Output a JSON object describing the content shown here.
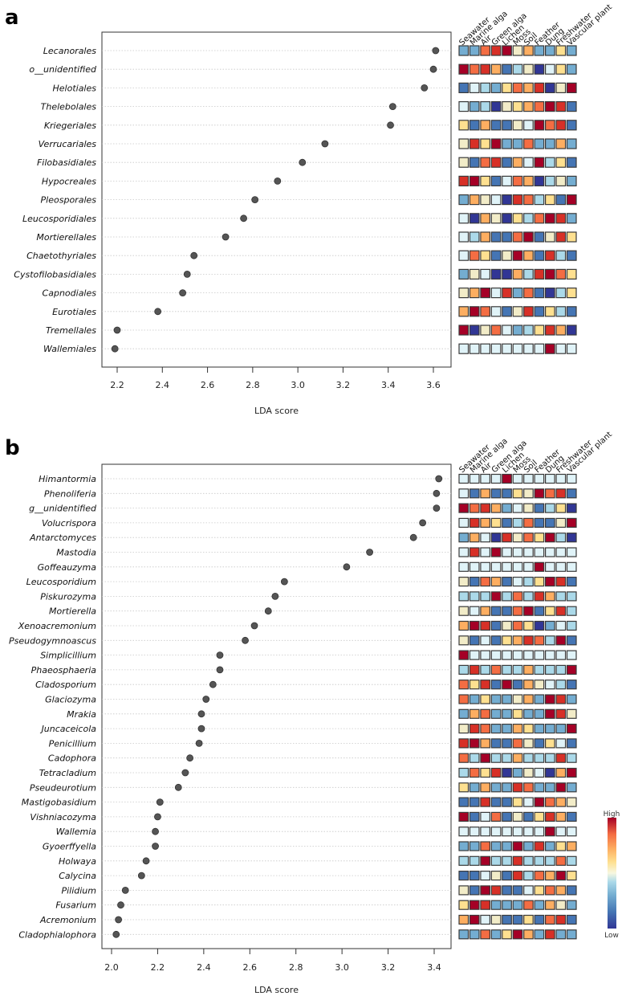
{
  "palette": [
    "#313695",
    "#4575b4",
    "#74add1",
    "#abd9e9",
    "#e0f3f8",
    "#f2ecc8",
    "#fee090",
    "#fdae61",
    "#f46d43",
    "#d73027",
    "#a50026"
  ],
  "legend": {
    "high": "High",
    "low": "Low"
  },
  "chart_data": [
    {
      "panel": "a",
      "type": "scatter",
      "xlabel": "LDA score",
      "xlim": [
        2.12,
        3.68
      ],
      "xticks": [
        "2.2",
        "2.4",
        "2.6",
        "2.8",
        "3.0",
        "3.2",
        "3.4",
        "3.6"
      ],
      "grid": "dotted horizontal",
      "habitats": [
        "Seawater",
        "Marine alga",
        "Air",
        "Green alga",
        "Lichen",
        "Moss",
        "Soil",
        "Feather",
        "Dung",
        "Freshwater",
        "Vascular plant"
      ],
      "taxa": [
        {
          "name": "Lecanorales",
          "lda": 3.61,
          "heat": [
            2,
            2,
            8,
            9,
            10,
            5,
            7,
            2,
            2,
            6,
            2
          ]
        },
        {
          "name": "o__unidentified",
          "lda": 3.6,
          "heat": [
            10,
            8,
            9,
            7,
            1,
            3,
            5,
            0,
            4,
            6,
            2
          ]
        },
        {
          "name": "Helotiales",
          "lda": 3.56,
          "heat": [
            1,
            4,
            3,
            2,
            6,
            8,
            7,
            9,
            0,
            5,
            10
          ]
        },
        {
          "name": "Thelebolales",
          "lda": 3.42,
          "heat": [
            4,
            2,
            3,
            0,
            5,
            6,
            7,
            8,
            10,
            9,
            1
          ]
        },
        {
          "name": "Kriegeriales",
          "lda": 3.41,
          "heat": [
            6,
            1,
            7,
            1,
            1,
            5,
            4,
            10,
            8,
            9,
            1
          ]
        },
        {
          "name": "Verrucariales",
          "lda": 3.12,
          "heat": [
            5,
            9,
            6,
            10,
            2,
            2,
            8,
            2,
            2,
            7,
            2
          ]
        },
        {
          "name": "Filobasidiales",
          "lda": 3.02,
          "heat": [
            5,
            1,
            8,
            9,
            1,
            7,
            4,
            10,
            3,
            6,
            1
          ]
        },
        {
          "name": "Hypocreales",
          "lda": 2.91,
          "heat": [
            9,
            10,
            6,
            1,
            4,
            8,
            7,
            0,
            3,
            5,
            2
          ]
        },
        {
          "name": "Pleosporales",
          "lda": 2.81,
          "heat": [
            2,
            7,
            5,
            4,
            0,
            9,
            8,
            3,
            6,
            1,
            10
          ]
        },
        {
          "name": "Leucosporidiales",
          "lda": 2.76,
          "heat": [
            4,
            0,
            7,
            5,
            0,
            6,
            3,
            8,
            10,
            9,
            2
          ]
        },
        {
          "name": "Mortierellales",
          "lda": 2.68,
          "heat": [
            4,
            3,
            7,
            1,
            1,
            8,
            10,
            1,
            5,
            9,
            6
          ]
        },
        {
          "name": "Chaetothyriales",
          "lda": 2.54,
          "heat": [
            4,
            8,
            6,
            1,
            5,
            10,
            7,
            1,
            9,
            3,
            1
          ]
        },
        {
          "name": "Cystofilobasidiales",
          "lda": 2.51,
          "heat": [
            2,
            5,
            4,
            0,
            0,
            7,
            3,
            9,
            10,
            8,
            6
          ]
        },
        {
          "name": "Capnodiales",
          "lda": 2.49,
          "heat": [
            5,
            7,
            10,
            4,
            9,
            2,
            8,
            1,
            0,
            3,
            6
          ]
        },
        {
          "name": "Eurotiales",
          "lda": 2.38,
          "heat": [
            7,
            10,
            8,
            4,
            1,
            5,
            9,
            1,
            6,
            3,
            1
          ]
        },
        {
          "name": "Tremellales",
          "lda": 2.2,
          "heat": [
            10,
            0,
            5,
            8,
            4,
            2,
            3,
            6,
            9,
            7,
            0
          ]
        },
        {
          "name": "Wallemiales",
          "lda": 2.19,
          "heat": [
            4,
            4,
            4,
            4,
            4,
            4,
            4,
            4,
            10,
            4,
            4
          ]
        }
      ]
    },
    {
      "panel": "b",
      "type": "scatter",
      "xlabel": "LDA score",
      "xlim": [
        1.94,
        3.49
      ],
      "xticks": [
        "2.0",
        "2.2",
        "2.4",
        "2.6",
        "2.8",
        "3.0",
        "3.2",
        "3.4"
      ],
      "grid": "dotted horizontal",
      "habitats": [
        "Seawater",
        "Marine alga",
        "Air",
        "Green alga",
        "Lichen",
        "Moss",
        "Soil",
        "Feather",
        "Dung",
        "Freshwater",
        "Vascular plant"
      ],
      "taxa": [
        {
          "name": "Himantormia",
          "lda": 3.42,
          "heat": [
            4,
            4,
            4,
            4,
            10,
            4,
            4,
            4,
            4,
            4,
            4
          ]
        },
        {
          "name": "Phenoliferia",
          "lda": 3.41,
          "heat": [
            4,
            1,
            7,
            1,
            1,
            6,
            5,
            10,
            8,
            9,
            1
          ]
        },
        {
          "name": "g__unidentified",
          "lda": 3.41,
          "heat": [
            10,
            8,
            9,
            7,
            2,
            4,
            5,
            1,
            3,
            6,
            0
          ]
        },
        {
          "name": "Volucrispora",
          "lda": 3.35,
          "heat": [
            4,
            9,
            7,
            6,
            1,
            3,
            8,
            1,
            1,
            5,
            10
          ]
        },
        {
          "name": "Antarctomyces",
          "lda": 3.31,
          "heat": [
            2,
            7,
            4,
            0,
            9,
            5,
            8,
            6,
            10,
            3,
            0
          ]
        },
        {
          "name": "Mastodia",
          "lda": 3.12,
          "heat": [
            4,
            9,
            4,
            10,
            4,
            4,
            4,
            4,
            4,
            4,
            4
          ]
        },
        {
          "name": "Goffeauzyma",
          "lda": 3.02,
          "heat": [
            4,
            4,
            4,
            4,
            4,
            4,
            4,
            10,
            4,
            4,
            4
          ]
        },
        {
          "name": "Leucosporidium",
          "lda": 2.75,
          "heat": [
            5,
            1,
            8,
            7,
            1,
            4,
            3,
            6,
            10,
            9,
            1
          ]
        },
        {
          "name": "Piskurozyma",
          "lda": 2.71,
          "heat": [
            3,
            3,
            3,
            10,
            3,
            8,
            3,
            9,
            7,
            3,
            3
          ]
        },
        {
          "name": "Mortierella",
          "lda": 2.68,
          "heat": [
            5,
            4,
            7,
            1,
            1,
            8,
            10,
            1,
            6,
            9,
            3
          ]
        },
        {
          "name": "Xenoacremonium",
          "lda": 2.62,
          "heat": [
            7,
            10,
            9,
            1,
            5,
            8,
            6,
            0,
            2,
            4,
            3
          ]
        },
        {
          "name": "Pseudogymnoascus",
          "lda": 2.58,
          "heat": [
            5,
            1,
            4,
            1,
            6,
            7,
            9,
            8,
            3,
            10,
            1
          ]
        },
        {
          "name": "Simplicillium",
          "lda": 2.47,
          "heat": [
            10,
            4,
            4,
            4,
            4,
            4,
            4,
            4,
            4,
            4,
            4
          ]
        },
        {
          "name": "Phaeosphaeria",
          "lda": 2.47,
          "heat": [
            3,
            9,
            3,
            8,
            3,
            3,
            7,
            3,
            3,
            3,
            10
          ]
        },
        {
          "name": "Cladosporium",
          "lda": 2.44,
          "heat": [
            8,
            6,
            9,
            1,
            10,
            1,
            7,
            5,
            4,
            3,
            1
          ]
        },
        {
          "name": "Glaciozyma",
          "lda": 2.41,
          "heat": [
            8,
            2,
            6,
            2,
            2,
            5,
            7,
            2,
            10,
            9,
            2
          ]
        },
        {
          "name": "Mrakia",
          "lda": 2.39,
          "heat": [
            2,
            7,
            8,
            2,
            2,
            6,
            2,
            2,
            10,
            9,
            5
          ]
        },
        {
          "name": "Juncaceicola",
          "lda": 2.39,
          "heat": [
            5,
            9,
            8,
            2,
            2,
            7,
            6,
            2,
            2,
            2,
            10
          ]
        },
        {
          "name": "Penicillium",
          "lda": 2.38,
          "heat": [
            9,
            10,
            7,
            1,
            1,
            8,
            5,
            1,
            6,
            4,
            1
          ]
        },
        {
          "name": "Cadophora",
          "lda": 2.34,
          "heat": [
            8,
            3,
            10,
            3,
            3,
            7,
            3,
            3,
            3,
            9,
            3
          ]
        },
        {
          "name": "Tetracladium",
          "lda": 2.32,
          "heat": [
            3,
            8,
            6,
            9,
            0,
            2,
            5,
            4,
            0,
            7,
            10
          ]
        },
        {
          "name": "Pseudeurotium",
          "lda": 2.29,
          "heat": [
            6,
            2,
            7,
            2,
            2,
            9,
            8,
            2,
            2,
            10,
            2
          ]
        },
        {
          "name": "Mastigobasidium",
          "lda": 2.21,
          "heat": [
            1,
            1,
            9,
            1,
            1,
            6,
            4,
            10,
            8,
            7,
            5
          ]
        },
        {
          "name": "Vishniacozyma",
          "lda": 2.2,
          "heat": [
            10,
            1,
            4,
            8,
            1,
            5,
            1,
            6,
            9,
            7,
            1
          ]
        },
        {
          "name": "Wallemia",
          "lda": 2.19,
          "heat": [
            4,
            4,
            4,
            4,
            4,
            4,
            4,
            4,
            10,
            4,
            4
          ]
        },
        {
          "name": "Gyoerffyella",
          "lda": 2.19,
          "heat": [
            2,
            2,
            8,
            2,
            2,
            10,
            2,
            9,
            2,
            6,
            7
          ]
        },
        {
          "name": "Holwaya",
          "lda": 2.15,
          "heat": [
            3,
            3,
            10,
            3,
            3,
            9,
            3,
            3,
            3,
            8,
            3
          ]
        },
        {
          "name": "Calycina",
          "lda": 2.13,
          "heat": [
            1,
            1,
            4,
            5,
            1,
            9,
            3,
            8,
            7,
            10,
            6
          ]
        },
        {
          "name": "Pilidium",
          "lda": 2.06,
          "heat": [
            5,
            1,
            10,
            9,
            1,
            1,
            4,
            6,
            8,
            7,
            1
          ]
        },
        {
          "name": "Fusarium",
          "lda": 2.04,
          "heat": [
            6,
            10,
            9,
            2,
            2,
            2,
            8,
            2,
            7,
            5,
            2
          ]
        },
        {
          "name": "Acremonium",
          "lda": 2.03,
          "heat": [
            7,
            10,
            4,
            5,
            1,
            1,
            6,
            1,
            8,
            9,
            1
          ]
        },
        {
          "name": "Cladophialophora",
          "lda": 2.02,
          "heat": [
            2,
            2,
            8,
            2,
            6,
            10,
            7,
            2,
            9,
            2,
            2
          ]
        }
      ]
    }
  ]
}
